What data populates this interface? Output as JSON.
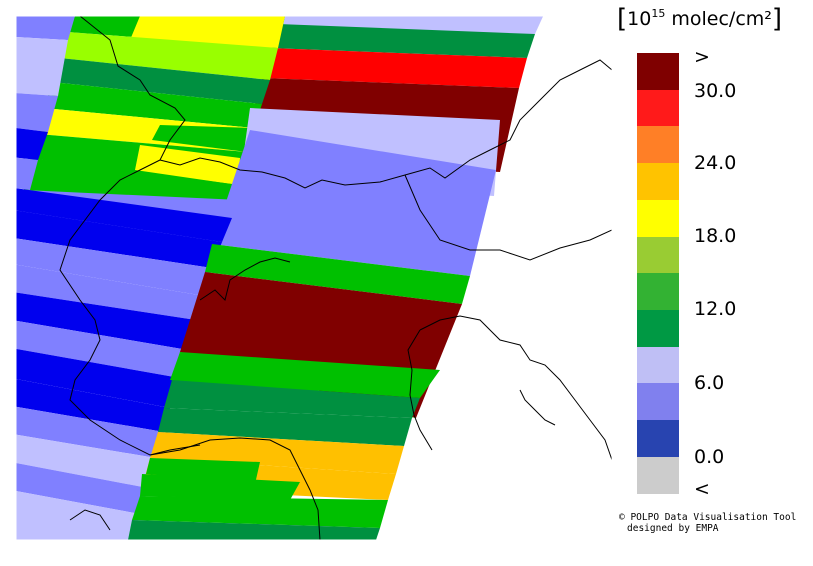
{
  "legend": {
    "unit_prefix": "[",
    "unit_base": "10",
    "unit_exp": "15",
    "unit_rest": " molec/cm²",
    "unit_suffix": "]",
    "over_symbol": ">",
    "under_symbol": "<",
    "ticks": [
      "30.0",
      "24.0",
      "18.0",
      "12.0",
      "6.0",
      "0.0"
    ],
    "bin_colors": [
      "#7f0000",
      "#ff1a1a",
      "#ff7f26",
      "#ffc300",
      "#ffff00",
      "#99cc33",
      "#33b233",
      "#009944",
      "#bfbff5",
      "#8080ee",
      "#2844b0",
      "#cccccc"
    ]
  },
  "credit": {
    "line1": "© POLPO Data Visualisation Tool",
    "line2": "designed by EMPA"
  },
  "colors": {
    "blue": "#0000ee",
    "mid_blue": "#8080ff",
    "light_blue": "#c0c0ff",
    "green": "#00c000",
    "dark_green": "#009040",
    "yellow_green": "#99ff00",
    "yellow": "#ffff00",
    "orange": "#ffc000",
    "red": "#ff0000",
    "dark_red": "#800000"
  }
}
